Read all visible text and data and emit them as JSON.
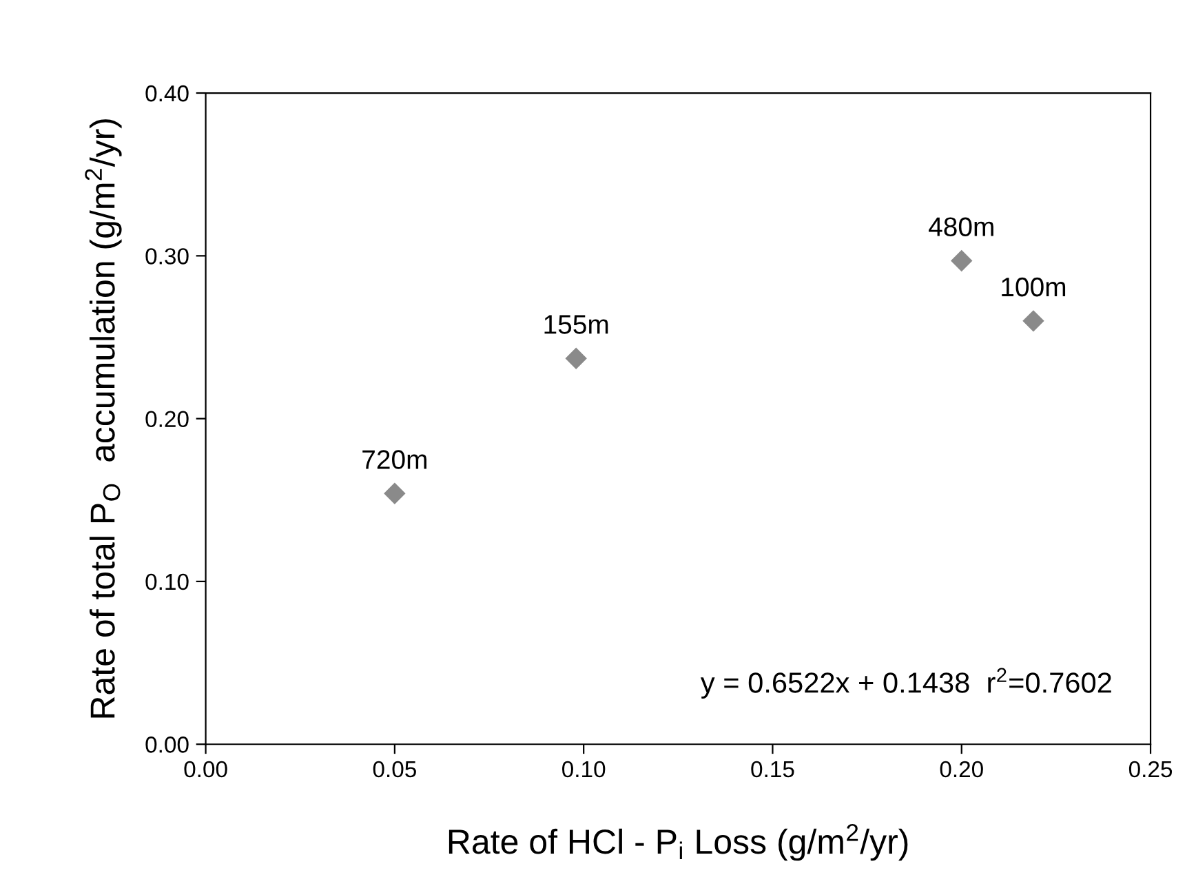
{
  "chart_data": {
    "type": "scatter",
    "xlabel": "Rate of HCl - P$_{i}$ Loss (g/m$^{2}$/yr)",
    "ylabel": "Rate of total P$_{O}$  accumulation (g/m$^{2}$/yr)",
    "x": [
      0.05,
      0.098,
      0.2,
      0.219
    ],
    "values": [
      0.154,
      0.237,
      0.297,
      0.26
    ],
    "color": "#8a8a8a",
    "marker": "diamond",
    "xlim": [
      0,
      0.25
    ],
    "xticks": [
      {
        "value": 0,
        "label": "0.00"
      },
      {
        "value": 0.05,
        "label": "0.05"
      },
      {
        "value": 0.1,
        "label": "0.10"
      },
      {
        "value": 0.15,
        "label": "0.15"
      },
      {
        "value": 0.2,
        "label": "0.20"
      },
      {
        "value": 0.25,
        "label": "0.25"
      }
    ],
    "ylim": [
      0,
      0.4
    ],
    "yticks": [
      {
        "value": 0,
        "label": "0.00"
      },
      {
        "value": 0.1,
        "label": "0.10"
      },
      {
        "value": 0.2,
        "label": "0.20"
      },
      {
        "value": 0.3,
        "label": "0.30"
      },
      {
        "value": 0.4,
        "label": "0.40"
      }
    ],
    "grid": false,
    "annotations": [
      {
        "text": "720m",
        "x": 0.05,
        "y": 0.154
      },
      {
        "text": "155m",
        "x": 0.098,
        "y": 0.237
      },
      {
        "text": "480m",
        "x": 0.2,
        "y": 0.297
      },
      {
        "text": "100m",
        "x": 0.219,
        "y": 0.26
      },
      "y = 0.6522x + 0.1438  r$^{2}$=0.7602"
    ]
  }
}
